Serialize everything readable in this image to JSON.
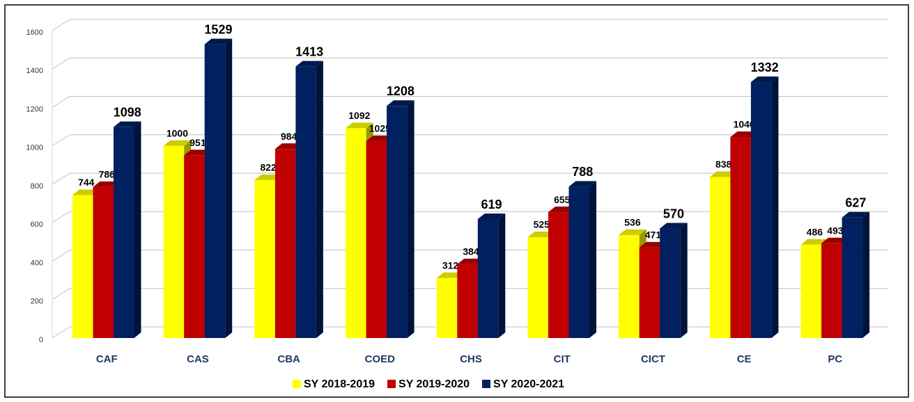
{
  "chart_data": {
    "type": "bar3d",
    "categories": [
      "CAF",
      "CAS",
      "CBA",
      "COED",
      "CHS",
      "CIT",
      "CICT",
      "CE",
      "PC"
    ],
    "series": [
      {
        "name": "SY 2018-2019",
        "color": "#ffff00",
        "values": [
          744,
          1000,
          822,
          1092,
          312,
          525,
          536,
          838,
          486
        ]
      },
      {
        "name": "SY 2019-2020",
        "color": "#c00000",
        "values": [
          786,
          951,
          984,
          1025,
          384,
          655,
          471,
          1046,
          493
        ]
      },
      {
        "name": "SY 2020-2021",
        "color": "#002060",
        "values": [
          1098,
          1529,
          1413,
          1208,
          619,
          788,
          570,
          1332,
          627
        ]
      }
    ],
    "ylim": [
      0,
      1600
    ],
    "yticks": [
      0,
      200,
      400,
      600,
      800,
      1000,
      1200,
      1400,
      1600
    ],
    "grid": true,
    "legend": "bottom"
  }
}
